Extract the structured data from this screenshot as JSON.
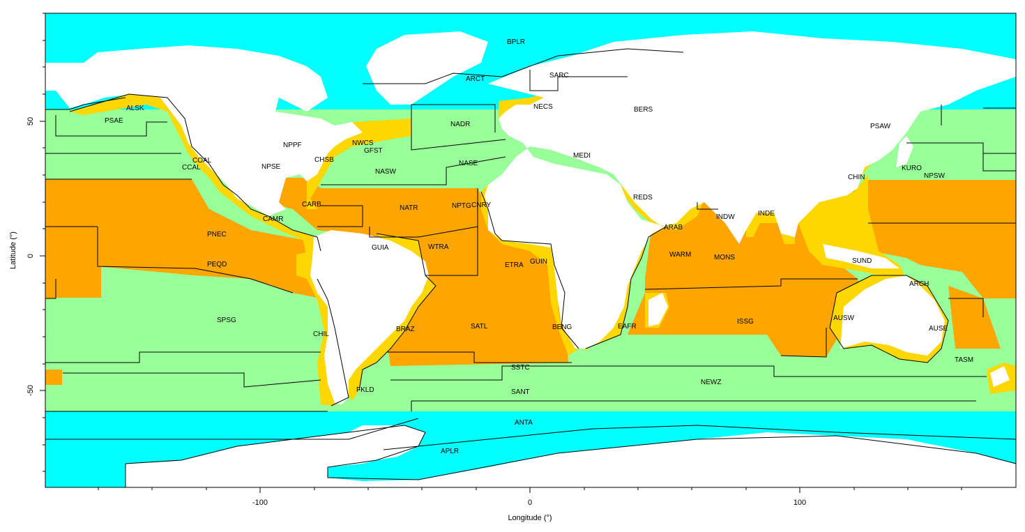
{
  "colors": {
    "polar": "#00ffff",
    "westerlies": "#99ff99",
    "trades": "#ffa500",
    "coastal": "#ffd700",
    "land": "#ffffff",
    "border": "#000000"
  },
  "axes": {
    "xlabel": "Longitude (°)",
    "ylabel": "Latitude (°)",
    "x_ticks": [
      "-100",
      "0",
      "100"
    ],
    "y_ticks": [
      "50",
      "0",
      "-50"
    ]
  },
  "province_labels": [
    "BPLR",
    "ARCT",
    "SARC",
    "NECS",
    "BERS",
    "ALSK",
    "PSAE",
    "PSAW",
    "NADR",
    "NPPF",
    "NWCS",
    "GFST",
    "CHSB",
    "COAL",
    "CCAL",
    "NPSE",
    "NASW",
    "NASE",
    "MEDI",
    "KURO",
    "NPSW",
    "CHIN",
    "REDS",
    "CARB",
    "NATR",
    "NPTG",
    "CNRY",
    "ARAB",
    "INDW",
    "INDE",
    "CAMR",
    "PNEC",
    "GUIA",
    "WTRA",
    "WARM",
    "MONS",
    "SUND",
    "PEQD",
    "ETRA",
    "GUIN",
    "ARCH",
    "AUSW",
    "ISSG",
    "SPSG",
    "CHIL",
    "BRAZ",
    "SATL",
    "BENG",
    "EAFR",
    "AUSE",
    "TASM",
    "SSTC",
    "NEWZ",
    "SANT",
    "FKLD",
    "ANTA",
    "APLR"
  ]
}
